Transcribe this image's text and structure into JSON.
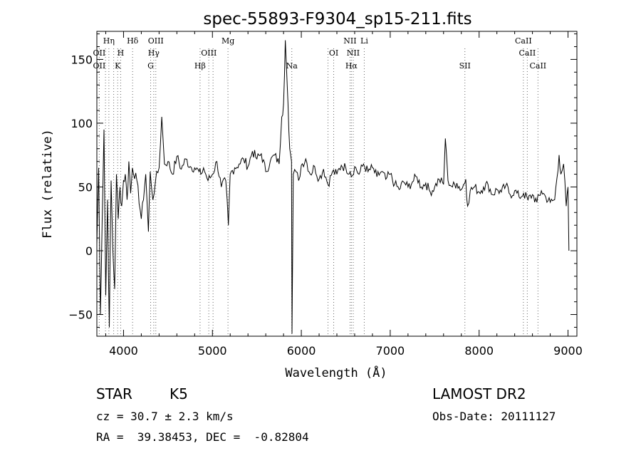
{
  "chart_data": {
    "type": "line",
    "title": "spec-55893-F9304_sp15-211.fits",
    "xlabel": "Wavelength (Å)",
    "ylabel": "Flux (relative)",
    "xlim": [
      3700,
      9100
    ],
    "ylim": [
      -67,
      172
    ],
    "xticks": [
      "4000",
      "5000",
      "6000",
      "7000",
      "8000",
      "9000"
    ],
    "yticks": [
      "−50",
      "0",
      "50",
      "100",
      "150"
    ],
    "xtick_values": [
      4000,
      5000,
      6000,
      7000,
      8000,
      9000
    ],
    "ytick_values": [
      -50,
      0,
      50,
      100,
      150
    ],
    "grid": false,
    "series": [
      {
        "x": [
          3700,
          3720,
          3740,
          3760,
          3780,
          3800,
          3820,
          3840,
          3860,
          3880,
          3900,
          3920,
          3940,
          3960,
          3980,
          4000,
          4020,
          4040,
          4060,
          4080,
          4100,
          4150,
          4200,
          4250,
          4280,
          4300,
          4330,
          4360,
          4400,
          4430,
          4460,
          4500,
          4550,
          4600,
          4650,
          4700,
          4750,
          4800,
          4850,
          4870,
          4900,
          4950,
          5000,
          5050,
          5100,
          5150,
          5180,
          5200,
          5250,
          5300,
          5350,
          5400,
          5450,
          5500,
          5550,
          5600,
          5650,
          5700,
          5750,
          5780,
          5800,
          5820,
          5835,
          5850,
          5870,
          5890,
          5895,
          5910,
          5940,
          5970,
          6000,
          6050,
          6100,
          6150,
          6200,
          6250,
          6300,
          6350,
          6400,
          6450,
          6500,
          6550,
          6563,
          6600,
          6650,
          6700,
          6750,
          6800,
          6850,
          6900,
          6950,
          7000,
          7050,
          7100,
          7150,
          7200,
          7250,
          7300,
          7350,
          7400,
          7450,
          7500,
          7550,
          7600,
          7620,
          7650,
          7700,
          7750,
          7800,
          7850,
          7870,
          7900,
          7950,
          8000,
          8050,
          8100,
          8150,
          8200,
          8250,
          8300,
          8350,
          8400,
          8450,
          8500,
          8550,
          8600,
          8650,
          8700,
          8750,
          8800,
          8850,
          8900,
          8920,
          8950,
          8980,
          9000,
          9010
        ],
        "y": [
          5,
          65,
          -50,
          25,
          95,
          -35,
          40,
          -60,
          55,
          0,
          -30,
          60,
          25,
          50,
          35,
          55,
          60,
          40,
          70,
          45,
          65,
          55,
          25,
          60,
          15,
          62,
          40,
          55,
          65,
          105,
          68,
          70,
          60,
          74,
          64,
          72,
          66,
          65,
          62,
          60,
          65,
          55,
          60,
          70,
          50,
          55,
          20,
          60,
          65,
          68,
          72,
          66,
          78,
          72,
          76,
          62,
          70,
          75,
          68,
          105,
          115,
          165,
          140,
          115,
          80,
          70,
          -65,
          60,
          62,
          55,
          67,
          72,
          60,
          66,
          56,
          64,
          52,
          62,
          60,
          67,
          65,
          62,
          58,
          66,
          60,
          68,
          62,
          65,
          58,
          62,
          56,
          60,
          52,
          48,
          54,
          50,
          54,
          58,
          50,
          53,
          46,
          50,
          56,
          52,
          88,
          55,
          50,
          53,
          48,
          56,
          35,
          47,
          50,
          46,
          50,
          52,
          44,
          48,
          46,
          51,
          44,
          47,
          42,
          45,
          40,
          44,
          38,
          47,
          42,
          38,
          40,
          75,
          60,
          68,
          35,
          50,
          0
        ]
      }
    ],
    "line_labels": {
      "row1": [
        {
          "text": "Hη",
          "x": 3835
        },
        {
          "text": "Hδ",
          "x": 4102
        },
        {
          "text": "OIII",
          "x": 4363
        },
        {
          "text": "Mg",
          "x": 5175
        },
        {
          "text": "NII",
          "x": 6548
        },
        {
          "text": "Li",
          "x": 6708
        },
        {
          "text": "CaII",
          "x": 8498
        }
      ],
      "row2": [
        {
          "text": "OII",
          "x": 3727
        },
        {
          "text": "H",
          "x": 3968
        },
        {
          "text": "Hγ",
          "x": 4340
        },
        {
          "text": "OIII",
          "x": 4960
        },
        {
          "text": "OI",
          "x": 6364
        },
        {
          "text": "NII",
          "x": 6584
        },
        {
          "text": "CaII",
          "x": 8542
        }
      ],
      "row3": [
        {
          "text": "OII",
          "x": 3727
        },
        {
          "text": "K",
          "x": 3934
        },
        {
          "text": "G",
          "x": 4305
        },
        {
          "text": "Hβ",
          "x": 4861
        },
        {
          "text": "Na",
          "x": 5893
        },
        {
          "text": "Hα",
          "x": 6563
        },
        {
          "text": "SII",
          "x": 7840
        },
        {
          "text": "CaII",
          "x": 8662
        }
      ],
      "dotted_lines": [
        3727,
        3797,
        3835,
        3889,
        3934,
        3968,
        4102,
        4305,
        4340,
        4363,
        4861,
        4959,
        5007,
        5175,
        5893,
        6300,
        6364,
        6548,
        6563,
        6584,
        6708,
        7840,
        8498,
        8542,
        8662
      ]
    }
  },
  "info": {
    "class_label": "STAR",
    "subclass": "K5",
    "survey": "LAMOST DR2",
    "redshift_line": "cz = 30.7 ± 2.3 km/s",
    "obs_date": "Obs-Date: 20111127",
    "coords": "RA =  39.38453, DEC =  -0.82804"
  }
}
